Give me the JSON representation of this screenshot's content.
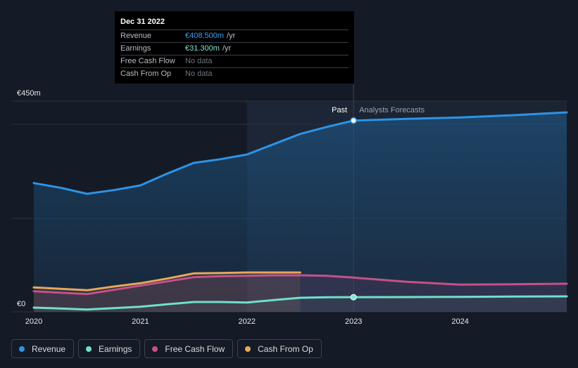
{
  "tooltip": {
    "date": "Dec 31 2022",
    "rows": [
      {
        "label": "Revenue",
        "value": "€408.500m",
        "unit": "/yr",
        "color": "#3ea0f2"
      },
      {
        "label": "Earnings",
        "value": "€31.300m",
        "unit": "/yr",
        "color": "#7ee6d3"
      },
      {
        "label": "Free Cash Flow",
        "value": "No data",
        "unit": "",
        "color": "#6e7480"
      },
      {
        "label": "Cash From Op",
        "value": "No data",
        "unit": "",
        "color": "#6e7480"
      }
    ]
  },
  "labels": {
    "past": "Past",
    "forecast": "Analysts Forecasts"
  },
  "legend": [
    {
      "label": "Revenue",
      "color": "#2e93e6"
    },
    {
      "label": "Earnings",
      "color": "#6fe0cc"
    },
    {
      "label": "Free Cash Flow",
      "color": "#c7508a"
    },
    {
      "label": "Cash From Op",
      "color": "#e7a85b"
    }
  ],
  "chart_data": {
    "type": "area",
    "y_unit": "€m",
    "ylim": [
      0,
      450
    ],
    "y_ticks": [
      {
        "value": 450,
        "label": "€450m"
      },
      {
        "value": 0,
        "label": "€0"
      }
    ],
    "xlim": [
      2020,
      2025
    ],
    "x_ticks": [
      {
        "value": 2020,
        "label": "2020"
      },
      {
        "value": 2021,
        "label": "2021"
      },
      {
        "value": 2022,
        "label": "2022"
      },
      {
        "value": 2023,
        "label": "2023"
      },
      {
        "value": 2024,
        "label": "2024"
      }
    ],
    "past_end": 2023,
    "highlight_start": 2022,
    "series": [
      {
        "name": "Revenue",
        "color": "#2e93e6",
        "points": [
          [
            2020,
            275
          ],
          [
            2020.25,
            265
          ],
          [
            2020.5,
            252
          ],
          [
            2020.75,
            260
          ],
          [
            2021,
            270
          ],
          [
            2021.25,
            295
          ],
          [
            2021.5,
            318
          ],
          [
            2021.75,
            326
          ],
          [
            2022,
            336
          ],
          [
            2022.25,
            358
          ],
          [
            2022.5,
            380
          ],
          [
            2022.75,
            395
          ],
          [
            2023,
            408.5
          ],
          [
            2023.5,
            412
          ],
          [
            2024,
            415
          ],
          [
            2024.5,
            420
          ],
          [
            2025,
            426
          ]
        ]
      },
      {
        "name": "Cash From Op",
        "color": "#e7a85b",
        "points": [
          [
            2020,
            52
          ],
          [
            2020.25,
            49
          ],
          [
            2020.5,
            46
          ],
          [
            2020.75,
            54
          ],
          [
            2021,
            61
          ],
          [
            2021.25,
            71
          ],
          [
            2021.5,
            82
          ],
          [
            2021.75,
            83
          ],
          [
            2022,
            84
          ],
          [
            2022.25,
            84
          ],
          [
            2022.5,
            84
          ]
        ]
      },
      {
        "name": "Free Cash Flow",
        "color": "#c7508a",
        "points": [
          [
            2020,
            44
          ],
          [
            2020.25,
            41
          ],
          [
            2020.5,
            38
          ],
          [
            2020.75,
            47
          ],
          [
            2021,
            56
          ],
          [
            2021.25,
            65
          ],
          [
            2021.5,
            74
          ],
          [
            2021.75,
            76
          ],
          [
            2022,
            77
          ],
          [
            2022.25,
            78
          ],
          [
            2022.5,
            78
          ],
          [
            2022.75,
            77
          ],
          [
            2023,
            73
          ],
          [
            2023.5,
            64
          ],
          [
            2024,
            58
          ],
          [
            2024.5,
            59
          ],
          [
            2025,
            60
          ]
        ]
      },
      {
        "name": "Earnings",
        "color": "#6fe0cc",
        "points": [
          [
            2020,
            9
          ],
          [
            2020.25,
            7
          ],
          [
            2020.5,
            5
          ],
          [
            2020.75,
            8
          ],
          [
            2021,
            11
          ],
          [
            2021.25,
            16
          ],
          [
            2021.5,
            21
          ],
          [
            2021.75,
            21
          ],
          [
            2022,
            20
          ],
          [
            2022.25,
            25
          ],
          [
            2022.5,
            30
          ],
          [
            2022.75,
            31
          ],
          [
            2023,
            31.3
          ],
          [
            2023.5,
            31.5
          ],
          [
            2024,
            32
          ],
          [
            2024.5,
            32.5
          ],
          [
            2025,
            33
          ]
        ]
      }
    ],
    "highlight_point": {
      "series": "Revenue",
      "x": 2023,
      "y": 408.5
    },
    "earnings_point": {
      "series": "Earnings",
      "x": 2023,
      "y": 31.3
    }
  }
}
